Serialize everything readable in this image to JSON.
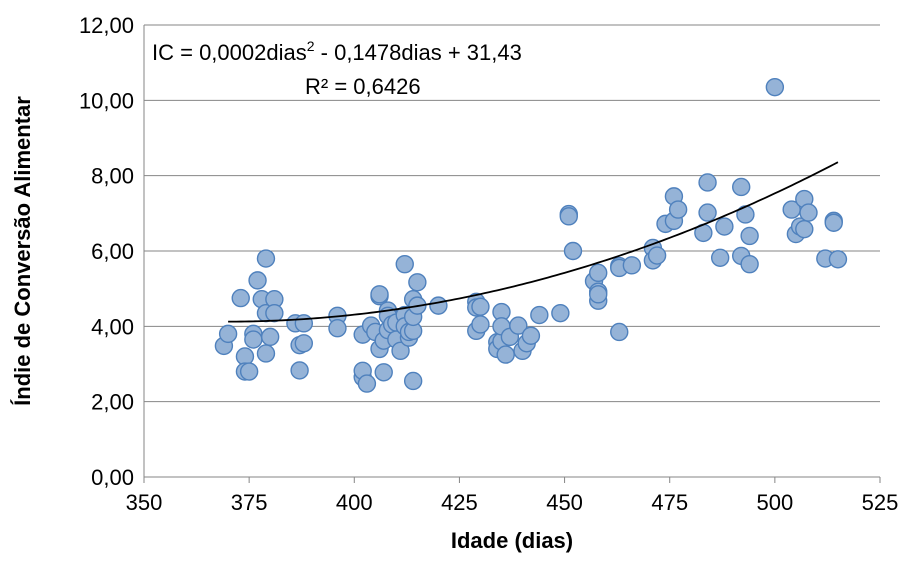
{
  "chart_data": {
    "type": "scatter",
    "xlabel": "Idade (dias)",
    "ylabel": "Índie de Conversão Alimentar",
    "xlim": [
      350,
      525
    ],
    "ylim": [
      0,
      12
    ],
    "x_ticks": [
      "350",
      "375",
      "400",
      "425",
      "450",
      "475",
      "500",
      "525"
    ],
    "y_ticks": [
      "0,00",
      "2,00",
      "4,00",
      "6,00",
      "8,00",
      "10,00",
      "12,00"
    ],
    "grid": "horizontal",
    "marker_color": "#95B3D7",
    "marker_edge_color": "#4F81BD",
    "trendline_color": "#000000",
    "annotation": {
      "equation_prefix": "IC = 0,0002dias",
      "equation_exponent": "2",
      "equation_suffix": " - 0,1478dias + 31,43",
      "r_squared": "R² = 0,6426"
    },
    "trendline": {
      "a": 0.0002,
      "b": -0.1478,
      "c": 31.43,
      "x_range": [
        370,
        515
      ]
    },
    "points": [
      [
        369,
        3.48
      ],
      [
        370,
        3.8
      ],
      [
        373,
        4.75
      ],
      [
        374,
        3.2
      ],
      [
        374,
        2.8
      ],
      [
        375,
        2.8
      ],
      [
        376,
        3.8
      ],
      [
        376,
        3.65
      ],
      [
        377,
        5.22
      ],
      [
        378,
        4.72
      ],
      [
        379,
        5.8
      ],
      [
        379,
        4.35
      ],
      [
        379,
        3.28
      ],
      [
        380,
        3.72
      ],
      [
        381,
        4.72
      ],
      [
        381,
        4.35
      ],
      [
        386,
        4.08
      ],
      [
        387,
        3.5
      ],
      [
        387,
        2.83
      ],
      [
        388,
        4.08
      ],
      [
        388,
        3.55
      ],
      [
        396,
        4.28
      ],
      [
        396,
        3.95
      ],
      [
        402,
        3.78
      ],
      [
        402,
        2.65
      ],
      [
        402,
        2.82
      ],
      [
        403,
        2.48
      ],
      [
        404,
        4.02
      ],
      [
        405,
        3.85
      ],
      [
        406,
        4.8
      ],
      [
        406,
        4.85
      ],
      [
        406,
        3.4
      ],
      [
        407,
        2.78
      ],
      [
        407,
        3.62
      ],
      [
        408,
        4.42
      ],
      [
        408,
        4.28
      ],
      [
        408,
        3.9
      ],
      [
        409,
        4.05
      ],
      [
        410,
        4.1
      ],
      [
        410,
        3.65
      ],
      [
        411,
        3.35
      ],
      [
        412,
        5.65
      ],
      [
        412,
        4.3
      ],
      [
        412,
        4.0
      ],
      [
        413,
        3.7
      ],
      [
        413,
        3.85
      ],
      [
        414,
        4.72
      ],
      [
        414,
        3.88
      ],
      [
        414,
        4.25
      ],
      [
        414,
        2.55
      ],
      [
        415,
        4.55
      ],
      [
        415,
        5.17
      ],
      [
        420,
        4.55
      ],
      [
        429,
        4.65
      ],
      [
        429,
        4.5
      ],
      [
        429,
        3.88
      ],
      [
        430,
        4.52
      ],
      [
        430,
        4.05
      ],
      [
        434,
        3.58
      ],
      [
        434,
        3.4
      ],
      [
        435,
        4.38
      ],
      [
        435,
        3.6
      ],
      [
        435,
        4.0
      ],
      [
        436,
        3.25
      ],
      [
        437,
        3.72
      ],
      [
        439,
        4.02
      ],
      [
        440,
        3.35
      ],
      [
        441,
        3.55
      ],
      [
        442,
        3.75
      ],
      [
        444,
        4.3
      ],
      [
        449,
        4.35
      ],
      [
        451,
        6.98
      ],
      [
        451,
        6.92
      ],
      [
        452,
        6.0
      ],
      [
        457,
        5.2
      ],
      [
        458,
        5.42
      ],
      [
        458,
        4.92
      ],
      [
        458,
        4.68
      ],
      [
        458,
        4.85
      ],
      [
        463,
        5.6
      ],
      [
        463,
        3.85
      ],
      [
        463,
        5.55
      ],
      [
        466,
        5.62
      ],
      [
        471,
        6.08
      ],
      [
        471,
        5.75
      ],
      [
        472,
        5.88
      ],
      [
        474,
        6.72
      ],
      [
        476,
        6.8
      ],
      [
        476,
        7.45
      ],
      [
        477,
        7.1
      ],
      [
        483,
        6.48
      ],
      [
        484,
        7.82
      ],
      [
        484,
        7.02
      ],
      [
        487,
        5.82
      ],
      [
        488,
        6.65
      ],
      [
        492,
        7.7
      ],
      [
        492,
        5.87
      ],
      [
        493,
        6.97
      ],
      [
        494,
        5.65
      ],
      [
        494,
        6.4
      ],
      [
        500,
        10.35
      ],
      [
        504,
        7.1
      ],
      [
        505,
        6.45
      ],
      [
        506,
        6.65
      ],
      [
        507,
        7.38
      ],
      [
        507,
        6.58
      ],
      [
        508,
        7.02
      ],
      [
        512,
        5.8
      ],
      [
        514,
        6.8
      ],
      [
        514,
        6.75
      ],
      [
        515,
        5.78
      ]
    ]
  }
}
